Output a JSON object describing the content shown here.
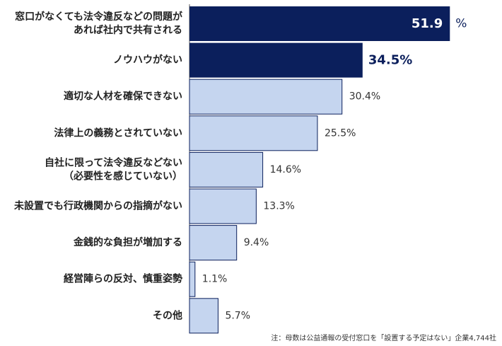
{
  "chart_data": {
    "type": "bar",
    "orientation": "horizontal",
    "categories": [
      [
        "窓口がなくても法令違反などの問題が",
        "あれば社内で共有される"
      ],
      [
        "ノウハウがない"
      ],
      [
        "適切な人材を確保できない"
      ],
      [
        "法律上の義務とされていない"
      ],
      [
        "自社に限って法令違反などない",
        "（必要性を感じていない）"
      ],
      [
        "未設置でも行政機関からの指摘がない"
      ],
      [
        "金銭的な負担が増加する"
      ],
      [
        "経営陣らの反対、慎重姿勢"
      ],
      [
        "その他"
      ]
    ],
    "values": [
      51.9,
      34.5,
      30.4,
      25.5,
      14.6,
      13.3,
      9.4,
      1.1,
      5.7
    ],
    "value_labels": [
      "51.9",
      "34.5",
      "30.4",
      "25.5",
      "14.6",
      "13.3",
      "9.4",
      "1.1",
      "5.7"
    ],
    "unit": "%",
    "highlight_count": 2,
    "colors": {
      "highlight_fill": "#0b1f5c",
      "normal_fill": "#c5d5ef",
      "normal_stroke": "#0b1f5c",
      "highlight_text": "#0b1f5c"
    },
    "xlim": [
      0,
      52
    ],
    "grid": false,
    "legend": "none"
  },
  "note": "注：母数は公益通報の受付窓口を「設置する予定はない」企業4,744社"
}
